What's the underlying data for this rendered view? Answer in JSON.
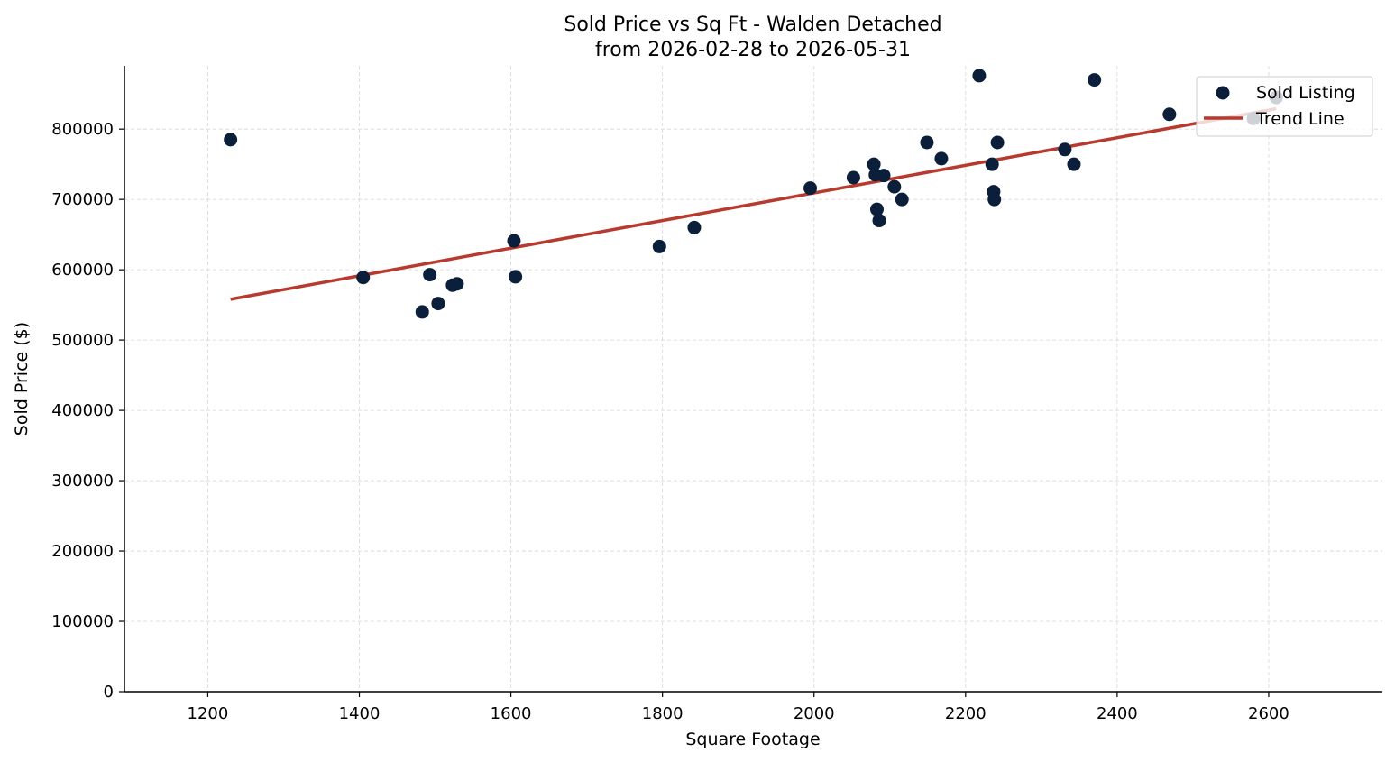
{
  "chart_data": {
    "type": "scatter",
    "title": "Sold Price vs Sq Ft - Walden Detached",
    "subtitle": "from 2026-02-28 to 2026-05-31",
    "xlabel": "Square Footage",
    "ylabel": "Sold Price ($)",
    "xlim": [
      1090,
      2750
    ],
    "ylim": [
      0,
      890000
    ],
    "xticks": [
      1200,
      1400,
      1600,
      1800,
      2000,
      2200,
      2400,
      2600
    ],
    "yticks": [
      0,
      100000,
      200000,
      300000,
      400000,
      500000,
      600000,
      700000,
      800000
    ],
    "grid": true,
    "legend_position": "top-right",
    "colors": {
      "points": "#0b1f3a",
      "trend": "#b83a2e",
      "grid": "#d6d6d6"
    },
    "series": [
      {
        "name": "Sold Listing",
        "kind": "scatter",
        "points": [
          [
            1230,
            785000
          ],
          [
            1405,
            589000
          ],
          [
            1483,
            540000
          ],
          [
            1493,
            593000
          ],
          [
            1504,
            552000
          ],
          [
            1523,
            578000
          ],
          [
            1529,
            580000
          ],
          [
            1604,
            641000
          ],
          [
            1606,
            590000
          ],
          [
            1796,
            633000
          ],
          [
            1842,
            660000
          ],
          [
            1995,
            716000
          ],
          [
            2052,
            731000
          ],
          [
            2079,
            750000
          ],
          [
            2081,
            735000
          ],
          [
            2083,
            686000
          ],
          [
            2086,
            670000
          ],
          [
            2092,
            734000
          ],
          [
            2106,
            718000
          ],
          [
            2116,
            700000
          ],
          [
            2149,
            781000
          ],
          [
            2168,
            758000
          ],
          [
            2218,
            876000
          ],
          [
            2235,
            750000
          ],
          [
            2237,
            711000
          ],
          [
            2238,
            700000
          ],
          [
            2242,
            781000
          ],
          [
            2331,
            771000
          ],
          [
            2343,
            750000
          ],
          [
            2370,
            870000
          ],
          [
            2469,
            821000
          ],
          [
            2580,
            815000
          ],
          [
            2610,
            845000
          ]
        ]
      },
      {
        "name": "Trend Line",
        "kind": "line",
        "points": [
          [
            1230,
            558000
          ],
          [
            2610,
            829000
          ]
        ]
      }
    ]
  }
}
